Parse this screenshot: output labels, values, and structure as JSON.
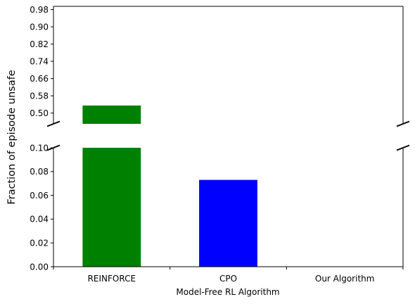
{
  "chart_data": {
    "type": "bar",
    "broken_axis": true,
    "categories": [
      "REINFORCE",
      "CPO",
      "Our Algorithm"
    ],
    "values": [
      0.535,
      0.073,
      0.0
    ],
    "colors": [
      "#008000",
      "#0000ff",
      "#ffffff"
    ],
    "xlabel": "Model-Free RL Algorithm",
    "ylabel": "Fraction of episode unsafe",
    "upper_panel": {
      "ylim": [
        0.45,
        0.995
      ],
      "ticks": [
        0.5,
        0.58,
        0.66,
        0.74,
        0.82,
        0.9,
        0.98
      ],
      "tick_labels": [
        "0.50",
        "0.58",
        "0.66",
        "0.74",
        "0.82",
        "0.90",
        "0.98"
      ]
    },
    "lower_panel": {
      "ylim": [
        0.0,
        0.1
      ],
      "ticks": [
        0.0,
        0.02,
        0.04,
        0.06,
        0.08,
        0.1
      ],
      "tick_labels": [
        "0.00",
        "0.02",
        "0.04",
        "0.06",
        "0.08",
        "0.10"
      ]
    },
    "grid": false,
    "legend": "none"
  }
}
